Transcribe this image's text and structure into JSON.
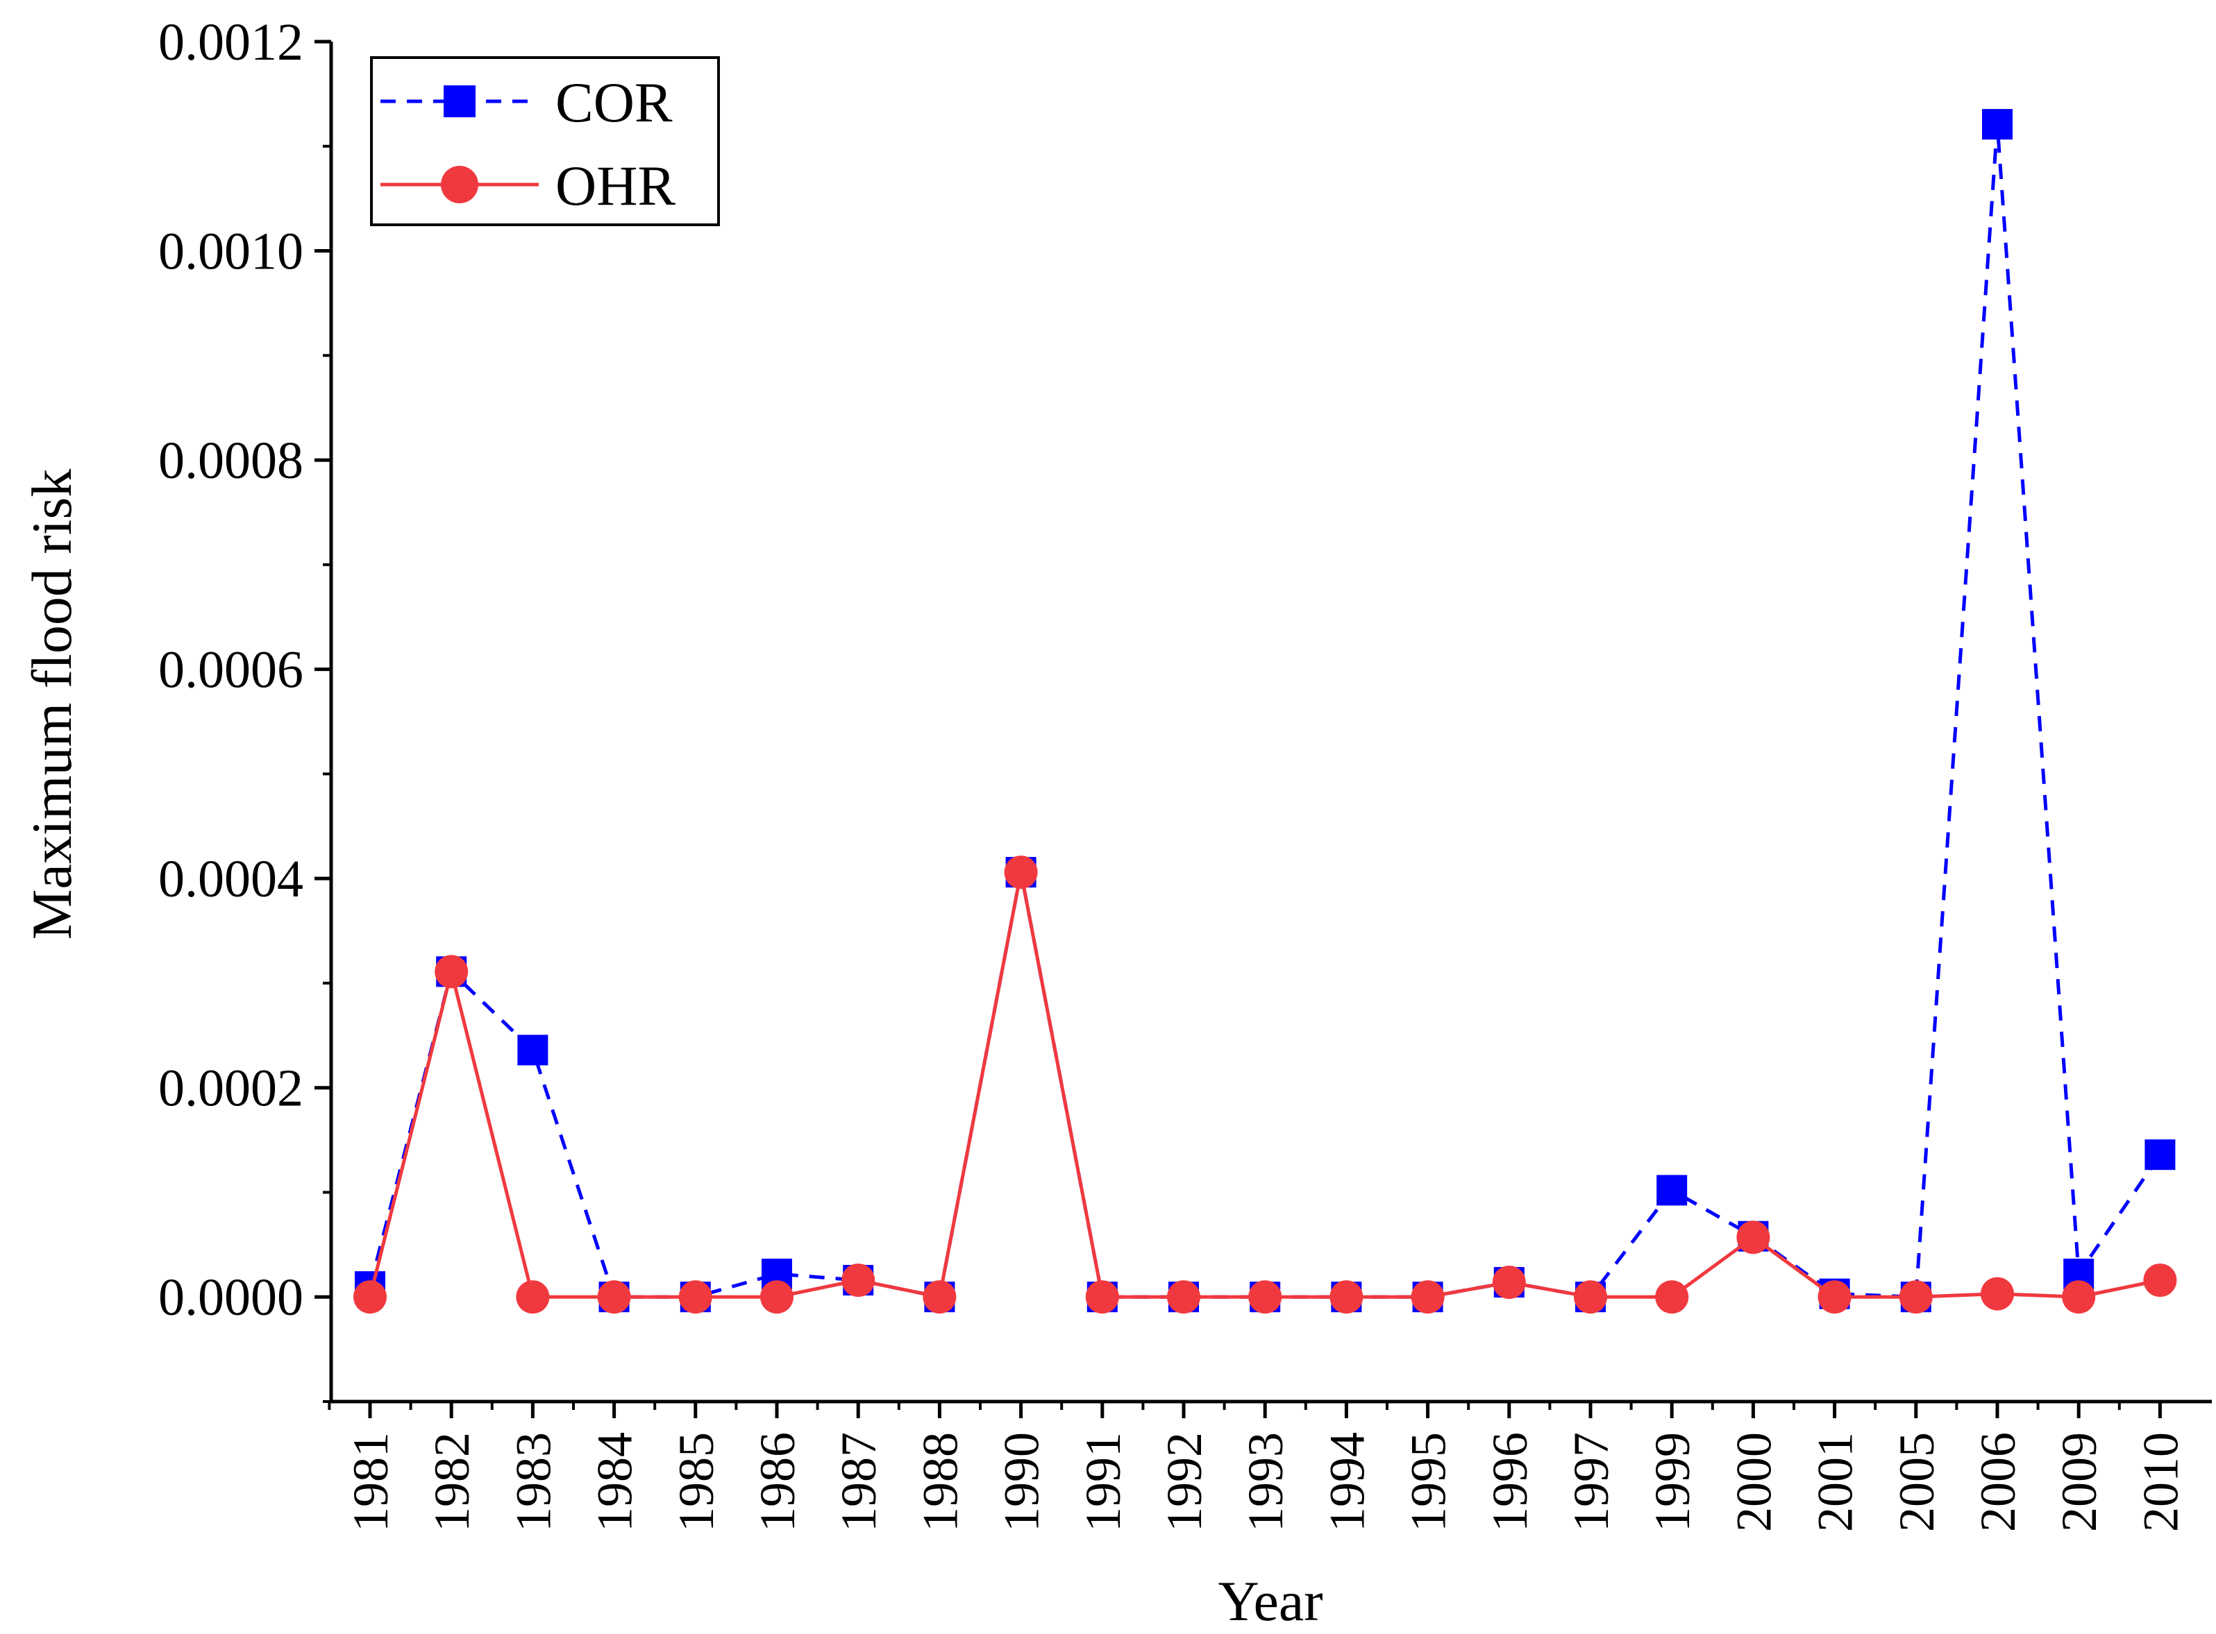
{
  "chart_data": {
    "type": "line",
    "title": "",
    "xlabel": "Year",
    "ylabel": "Maximum flood risk",
    "ylim": [
      -0.0001,
      0.0012
    ],
    "yticks": [
      "0.0000",
      "0.0002",
      "0.0004",
      "0.0006",
      "0.0008",
      "0.0010",
      "0.0012"
    ],
    "ytick_values": [
      0,
      0.0002,
      0.0004,
      0.0006,
      0.0008,
      0.001,
      0.0012
    ],
    "categories": [
      "1981",
      "1982",
      "1983",
      "1984",
      "1985",
      "1986",
      "1987",
      "1988",
      "1990",
      "1991",
      "1992",
      "1993",
      "1994",
      "1995",
      "1996",
      "1997",
      "1999",
      "2000",
      "2001",
      "2005",
      "2006",
      "2009",
      "2010"
    ],
    "legend_position": "top-left",
    "series": [
      {
        "name": "COR",
        "color": "#0000ff",
        "line_style": "dashed",
        "marker": "square",
        "values": [
          1e-05,
          0.000311,
          0.000236,
          0.0,
          0.0,
          2.2e-05,
          1.6e-05,
          0.0,
          0.000406,
          0.0,
          0.0,
          0.0,
          0.0,
          0.0,
          1.4e-05,
          0.0,
          0.000102,
          5.8e-05,
          3e-06,
          0.0,
          0.001121,
          2.2e-05,
          0.000136
        ]
      },
      {
        "name": "OHR",
        "color": "#f0393f",
        "line_style": "solid",
        "marker": "circle",
        "values": [
          0.0,
          0.000311,
          0.0,
          0.0,
          0.0,
          0.0,
          1.6e-05,
          0.0,
          0.000406,
          0.0,
          0.0,
          0.0,
          0.0,
          0.0,
          1.4e-05,
          0.0,
          0.0,
          5.7e-05,
          0.0,
          0.0,
          3e-06,
          0.0,
          1.6e-05
        ]
      }
    ]
  }
}
